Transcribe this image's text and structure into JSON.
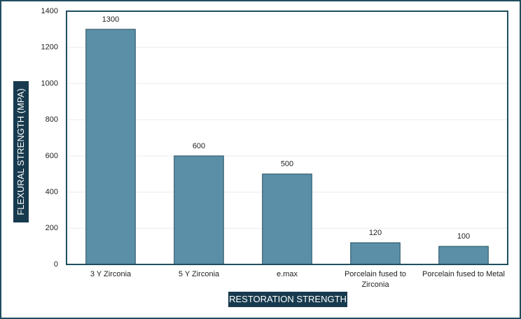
{
  "chart_data": {
    "type": "bar",
    "x_label": "RESTORATION STRENGTH",
    "y_label": "FLEXURAL STRENGTH (MPA)",
    "categories": [
      "3 Y Zirconia",
      "5 Y Zirconia",
      "e.max",
      "Porcelain fused to Zirconia",
      "Porcelain fused to Metal"
    ],
    "values": [
      1300,
      600,
      500,
      120,
      100
    ],
    "color": "#5b8fa8",
    "ylim": [
      0,
      1400
    ],
    "yticks": [
      0,
      200,
      400,
      600,
      800,
      1000,
      1200,
      1400
    ],
    "grid": true
  }
}
